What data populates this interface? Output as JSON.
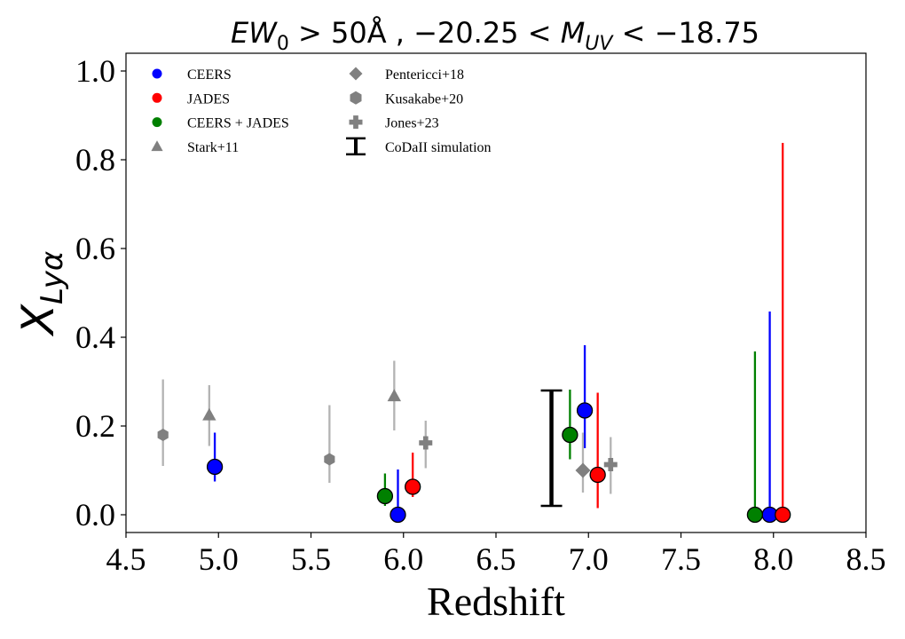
{
  "chart_data": {
    "type": "scatter",
    "title": "EW₀ > 50Å , −20.25 < M_UV < −18.75",
    "title_parts": {
      "ew": "EW",
      "ew_sub": "0",
      "mid": " > 50Å , −20.25 < ",
      "m": "M",
      "m_sub": "UV",
      "end": " < −18.75"
    },
    "xlabel": "Redshift",
    "ylabel": "X",
    "ylabel_sub": "Lyα",
    "xlim": [
      4.5,
      8.5
    ],
    "ylim": [
      -0.04,
      1.04
    ],
    "xticks": [
      4.5,
      5.0,
      5.5,
      6.0,
      6.5,
      7.0,
      7.5,
      8.0,
      8.5
    ],
    "xtick_labels": [
      "4.5",
      "5.0",
      "5.5",
      "6.0",
      "6.5",
      "7.0",
      "7.5",
      "8.0",
      "8.5"
    ],
    "yticks": [
      0.0,
      0.2,
      0.4,
      0.6,
      0.8,
      1.0
    ],
    "ytick_labels": [
      "0.0",
      "0.2",
      "0.4",
      "0.6",
      "0.8",
      "1.0"
    ],
    "legend_position": "top-left",
    "series": [
      {
        "name": "CEERS",
        "marker": "circle",
        "color": "#0000ff",
        "ecolor": "#0000ff",
        "points": [
          {
            "x": 4.98,
            "y": 0.108,
            "lo": 0.075,
            "hi": 0.185
          },
          {
            "x": 5.97,
            "y": 0.0,
            "lo": 0.0,
            "hi": 0.102
          },
          {
            "x": 6.98,
            "y": 0.235,
            "lo": 0.15,
            "hi": 0.382
          },
          {
            "x": 7.98,
            "y": 0.0,
            "lo": 0.0,
            "hi": 0.458
          }
        ]
      },
      {
        "name": "JADES",
        "marker": "circle",
        "color": "#ff0000",
        "ecolor": "#ff0000",
        "points": [
          {
            "x": 6.05,
            "y": 0.063,
            "lo": 0.04,
            "hi": 0.14
          },
          {
            "x": 7.05,
            "y": 0.09,
            "lo": 0.015,
            "hi": 0.275
          },
          {
            "x": 8.05,
            "y": 0.0,
            "lo": 0.0,
            "hi": 0.838
          }
        ]
      },
      {
        "name": "CEERS + JADES",
        "marker": "circle",
        "color": "#008000",
        "ecolor": "#008000",
        "points": [
          {
            "x": 5.9,
            "y": 0.042,
            "lo": 0.02,
            "hi": 0.093
          },
          {
            "x": 6.9,
            "y": 0.18,
            "lo": 0.125,
            "hi": 0.282
          },
          {
            "x": 7.9,
            "y": 0.0,
            "lo": 0.0,
            "hi": 0.368
          }
        ]
      },
      {
        "name": "Stark+11",
        "marker": "triangle",
        "color": "#808080",
        "ecolor": "#b3b3b3",
        "points": [
          {
            "x": 4.95,
            "y": 0.225,
            "lo": 0.155,
            "hi": 0.292
          },
          {
            "x": 5.95,
            "y": 0.268,
            "lo": 0.19,
            "hi": 0.347
          }
        ]
      },
      {
        "name": "Pentericci+18",
        "marker": "diamond",
        "color": "#808080",
        "ecolor": "#b3b3b3",
        "points": [
          {
            "x": 6.97,
            "y": 0.1,
            "lo": 0.05,
            "hi": 0.185
          }
        ]
      },
      {
        "name": "Kusakabe+20",
        "marker": "hexagon",
        "color": "#808080",
        "ecolor": "#b3b3b3",
        "points": [
          {
            "x": 4.7,
            "y": 0.18,
            "lo": 0.11,
            "hi": 0.305
          },
          {
            "x": 5.6,
            "y": 0.125,
            "lo": 0.072,
            "hi": 0.247
          }
        ]
      },
      {
        "name": "Jones+23",
        "marker": "plus",
        "color": "#808080",
        "ecolor": "#b3b3b3",
        "points": [
          {
            "x": 6.12,
            "y": 0.162,
            "lo": 0.105,
            "hi": 0.212
          },
          {
            "x": 7.12,
            "y": 0.113,
            "lo": 0.047,
            "hi": 0.175
          }
        ]
      },
      {
        "name": "CoDaII simulation",
        "marker": "errorbar",
        "color": "#000000",
        "ecolor": "#000000",
        "points": [
          {
            "x": 6.8,
            "lo": 0.02,
            "hi": 0.28
          }
        ]
      }
    ]
  }
}
